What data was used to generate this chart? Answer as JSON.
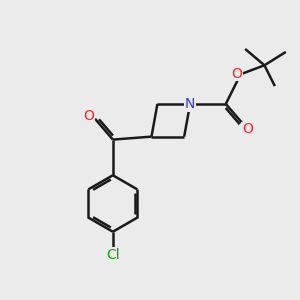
{
  "bg_color": "#ebebeb",
  "bond_color": "#1a1a1a",
  "N_color": "#3333ff",
  "O_color": "#ff2020",
  "Cl_color": "#00aa00",
  "line_width": 1.8,
  "double_sep": 0.09,
  "figsize": [
    3.0,
    3.0
  ],
  "dpi": 100,
  "xlim": [
    0,
    10
  ],
  "ylim": [
    0,
    10
  ]
}
